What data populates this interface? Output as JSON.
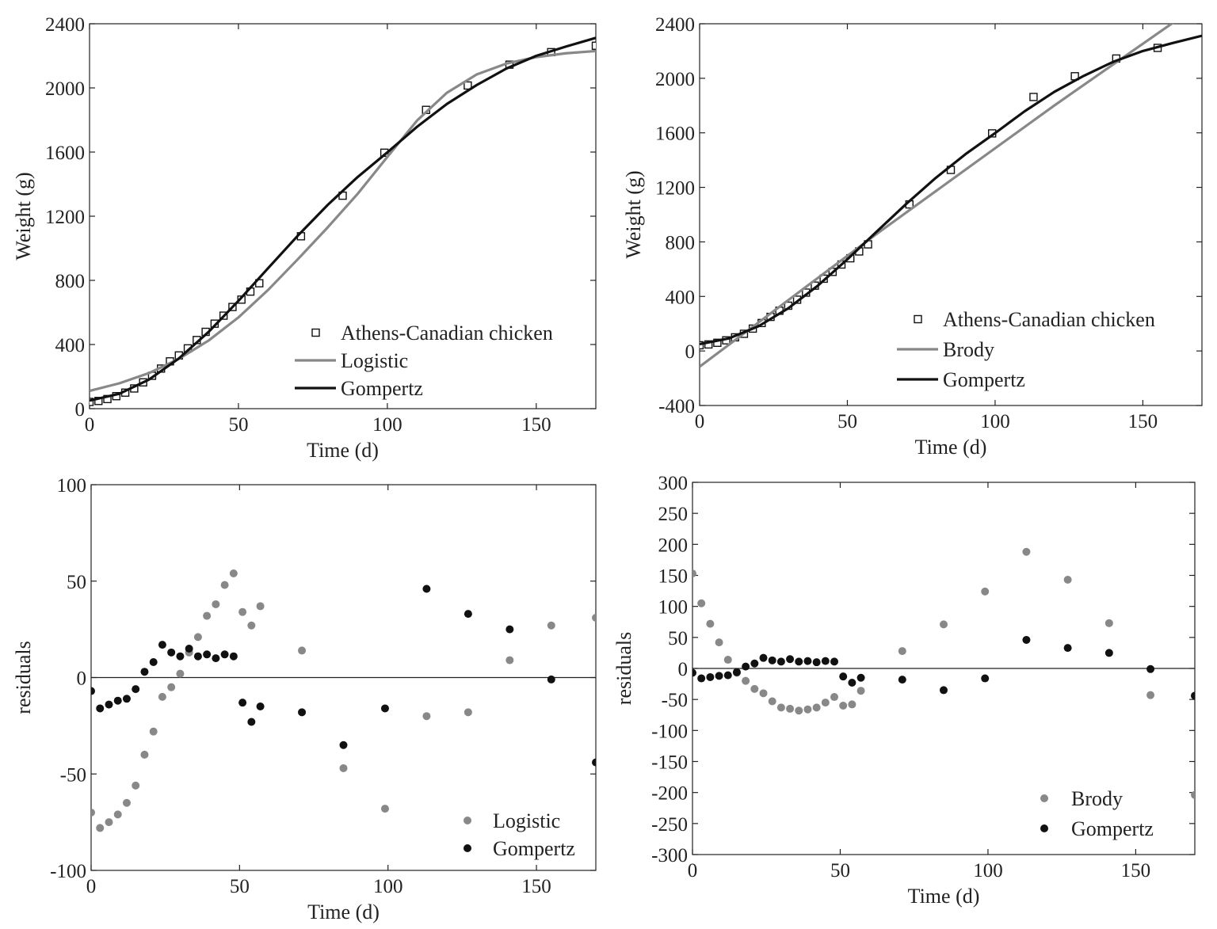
{
  "chart_data": [
    {
      "type": "line",
      "xlabel": "Time (d)",
      "ylabel": "Weight (g)",
      "xlim": [
        0,
        170
      ],
      "ylim": [
        0,
        2400
      ],
      "xticks": [
        0,
        50,
        100,
        150
      ],
      "yticks": [
        0,
        400,
        800,
        1200,
        1600,
        2000,
        2400
      ],
      "legend_placement": "bottom-right",
      "series": [
        {
          "name": "Athens-Canadian chicken",
          "style": "square-markers",
          "color": "#111111",
          "x": [
            0,
            3,
            6,
            9,
            12,
            15,
            18,
            21,
            24,
            27,
            30,
            33,
            36,
            39,
            42,
            45,
            48,
            51,
            54,
            57,
            71,
            85,
            99,
            113,
            127,
            141,
            155,
            170
          ],
          "y": [
            42,
            48,
            60,
            78,
            100,
            126,
            164,
            205,
            250,
            295,
            332,
            376,
            428,
            479,
            530,
            580,
            634,
            680,
            730,
            782,
            1075,
            1328,
            1596,
            1863,
            2015,
            2145,
            2223,
            2263
          ]
        },
        {
          "name": "Logistic",
          "style": "line",
          "color": "#888888",
          "x": [
            0,
            10,
            20,
            30,
            40,
            50,
            60,
            70,
            80,
            90,
            100,
            110,
            120,
            130,
            140,
            150,
            160,
            170
          ],
          "y": [
            111,
            158,
            222,
            311,
            425,
            569,
            741,
            933,
            1131,
            1339,
            1570,
            1797,
            1970,
            2084,
            2152,
            2192,
            2216,
            2230
          ]
        },
        {
          "name": "Gompertz",
          "style": "line",
          "color": "#111111",
          "x": [
            0,
            10,
            20,
            30,
            40,
            50,
            60,
            70,
            80,
            90,
            100,
            110,
            120,
            130,
            140,
            150,
            160,
            170
          ],
          "y": [
            50,
            93,
            182,
            313,
            479,
            672,
            877,
            1080,
            1271,
            1444,
            1598,
            1758,
            1900,
            2018,
            2121,
            2200,
            2258,
            2312
          ]
        }
      ]
    },
    {
      "type": "line",
      "xlabel": "Time (d)",
      "ylabel": "Weight (g)",
      "xlim": [
        0,
        170
      ],
      "ylim": [
        -400,
        2400
      ],
      "xticks": [
        0,
        50,
        100,
        150
      ],
      "yticks": [
        -400,
        0,
        400,
        800,
        1200,
        1600,
        2000,
        2400
      ],
      "legend_placement": "bottom-right",
      "series": [
        {
          "name": "Athens-Canadian chicken",
          "style": "square-markers",
          "color": "#111111",
          "x": [
            0,
            3,
            6,
            9,
            12,
            15,
            18,
            21,
            24,
            27,
            30,
            33,
            36,
            39,
            42,
            45,
            48,
            51,
            54,
            57,
            71,
            85,
            99,
            113,
            127,
            141,
            155
          ],
          "y": [
            42,
            48,
            60,
            78,
            100,
            126,
            164,
            205,
            250,
            295,
            332,
            376,
            428,
            479,
            530,
            580,
            634,
            680,
            730,
            782,
            1075,
            1328,
            1596,
            1863,
            2015,
            2145,
            2223
          ]
        },
        {
          "name": "Brody",
          "style": "line",
          "color": "#888888",
          "x": [
            0,
            60,
            120,
            165
          ],
          "y": [
            -115,
            860,
            1800,
            2480
          ]
        },
        {
          "name": "Gompertz",
          "style": "line",
          "color": "#111111",
          "x": [
            0,
            10,
            20,
            30,
            40,
            50,
            60,
            70,
            80,
            90,
            100,
            110,
            120,
            130,
            140,
            150,
            160,
            170
          ],
          "y": [
            50,
            93,
            182,
            313,
            479,
            672,
            877,
            1080,
            1271,
            1444,
            1598,
            1758,
            1900,
            2018,
            2121,
            2200,
            2258,
            2312
          ]
        }
      ]
    },
    {
      "type": "scatter",
      "xlabel": "Time (d)",
      "ylabel": "residuals",
      "xlim": [
        0,
        170
      ],
      "ylim": [
        -100,
        100
      ],
      "xticks": [
        0,
        50,
        100,
        150
      ],
      "yticks": [
        -100,
        -50,
        0,
        50,
        100
      ],
      "zero_line": true,
      "legend_placement": "bottom-right",
      "series": [
        {
          "name": "Logistic",
          "color": "#888888",
          "x": [
            0,
            3,
            6,
            9,
            12,
            15,
            18,
            21,
            24,
            27,
            30,
            33,
            36,
            39,
            42,
            45,
            48,
            51,
            54,
            57,
            71,
            85,
            99,
            113,
            127,
            141,
            155,
            170
          ],
          "y": [
            -70,
            -78,
            -75,
            -71,
            -65,
            -56,
            -40,
            -28,
            -10,
            -5,
            2,
            13,
            21,
            32,
            38,
            48,
            54,
            34,
            27,
            37,
            14,
            -47,
            -68,
            -20,
            -18,
            9,
            27,
            31
          ]
        },
        {
          "name": "Gompertz",
          "color": "#111111",
          "x": [
            0,
            3,
            6,
            9,
            12,
            15,
            18,
            21,
            24,
            27,
            30,
            33,
            36,
            39,
            42,
            45,
            48,
            51,
            54,
            57,
            71,
            85,
            99,
            113,
            127,
            141,
            155,
            170
          ],
          "y": [
            -7,
            -16,
            -14,
            -12,
            -11,
            -6,
            3,
            8,
            17,
            13,
            11,
            15,
            11,
            12,
            10,
            12,
            11,
            -13,
            -23,
            -15,
            -18,
            -35,
            -16,
            46,
            33,
            25,
            -1,
            -44
          ]
        }
      ]
    },
    {
      "type": "scatter",
      "xlabel": "Time (d)",
      "ylabel": "residuals",
      "xlim": [
        0,
        170
      ],
      "ylim": [
        -300,
        300
      ],
      "xticks": [
        0,
        50,
        100,
        150
      ],
      "yticks": [
        -300,
        -250,
        -200,
        -150,
        -100,
        -50,
        0,
        50,
        100,
        150,
        200,
        250,
        300
      ],
      "zero_line": true,
      "legend_placement": "bottom-right",
      "series": [
        {
          "name": "Brody",
          "color": "#888888",
          "x": [
            0,
            3,
            6,
            9,
            12,
            15,
            18,
            21,
            24,
            27,
            30,
            33,
            36,
            39,
            42,
            45,
            48,
            51,
            54,
            57,
            71,
            85,
            99,
            113,
            127,
            141,
            155,
            170
          ],
          "y": [
            153,
            105,
            72,
            42,
            14,
            -7,
            -20,
            -33,
            -40,
            -53,
            -63,
            -65,
            -68,
            -66,
            -63,
            -55,
            -46,
            -60,
            -58,
            -36,
            28,
            71,
            124,
            188,
            143,
            73,
            -43,
            -204
          ]
        },
        {
          "name": "Gompertz",
          "color": "#111111",
          "x": [
            0,
            3,
            6,
            9,
            12,
            15,
            18,
            21,
            24,
            27,
            30,
            33,
            36,
            39,
            42,
            45,
            48,
            51,
            54,
            57,
            71,
            85,
            99,
            113,
            127,
            141,
            155,
            170
          ],
          "y": [
            -7,
            -16,
            -14,
            -12,
            -11,
            -6,
            3,
            8,
            17,
            13,
            11,
            15,
            11,
            12,
            10,
            12,
            11,
            -13,
            -23,
            -15,
            -18,
            -35,
            -16,
            46,
            33,
            25,
            -1,
            -44
          ]
        }
      ]
    }
  ]
}
